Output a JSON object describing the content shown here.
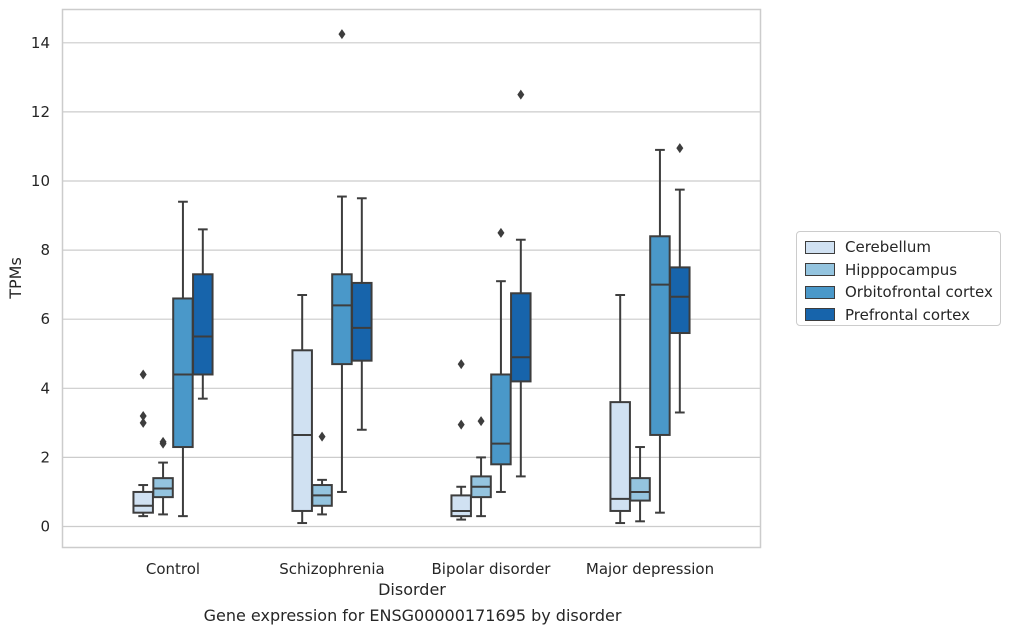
{
  "caption": "Gene expression for ENSG00000171695 by disorder",
  "chart_data": {
    "type": "box",
    "xlabel": "Disorder",
    "ylabel": "TPMs",
    "ylim": [
      -0.6,
      15.0
    ],
    "yticks": [
      0,
      2,
      4,
      6,
      8,
      10,
      12,
      14
    ],
    "grid": "horizontal",
    "legend_position": "right",
    "categories": [
      "Control",
      "Schizophrenia",
      "Bipolar disorder",
      "Major depression"
    ],
    "series": [
      {
        "name": "Cerebellum",
        "color": "#d0e1f2",
        "boxes": [
          {
            "whisker_low": 0.3,
            "q1": 0.4,
            "median": 0.6,
            "q3": 1.0,
            "whisker_high": 1.2,
            "outliers": [
              4.4,
              3.2,
              3.0
            ]
          },
          {
            "whisker_low": 0.1,
            "q1": 0.45,
            "median": 2.65,
            "q3": 5.1,
            "whisker_high": 6.7,
            "outliers": []
          },
          {
            "whisker_low": 0.2,
            "q1": 0.3,
            "median": 0.45,
            "q3": 0.9,
            "whisker_high": 1.15,
            "outliers": [
              4.7,
              2.95
            ]
          },
          {
            "whisker_low": 0.1,
            "q1": 0.45,
            "median": 0.8,
            "q3": 3.6,
            "whisker_high": 6.7,
            "outliers": []
          }
        ]
      },
      {
        "name": "Hipppocampus",
        "color": "#94c4df",
        "boxes": [
          {
            "whisker_low": 0.35,
            "q1": 0.85,
            "median": 1.1,
            "q3": 1.4,
            "whisker_high": 1.85,
            "outliers": [
              2.45,
              2.4
            ]
          },
          {
            "whisker_low": 0.35,
            "q1": 0.6,
            "median": 0.9,
            "q3": 1.2,
            "whisker_high": 1.35,
            "outliers": [
              2.6
            ]
          },
          {
            "whisker_low": 0.3,
            "q1": 0.85,
            "median": 1.15,
            "q3": 1.45,
            "whisker_high": 2.0,
            "outliers": [
              3.05
            ]
          },
          {
            "whisker_low": 0.15,
            "q1": 0.75,
            "median": 1.0,
            "q3": 1.4,
            "whisker_high": 2.3,
            "outliers": []
          }
        ]
      },
      {
        "name": "Orbitofrontal cortex",
        "color": "#4a98c9",
        "boxes": [
          {
            "whisker_low": 0.3,
            "q1": 2.3,
            "median": 4.4,
            "q3": 6.6,
            "whisker_high": 9.4,
            "outliers": []
          },
          {
            "whisker_low": 1.0,
            "q1": 4.7,
            "median": 6.4,
            "q3": 7.3,
            "whisker_high": 9.55,
            "outliers": [
              14.25
            ]
          },
          {
            "whisker_low": 1.0,
            "q1": 1.8,
            "median": 2.4,
            "q3": 4.4,
            "whisker_high": 7.1,
            "outliers": [
              8.5
            ]
          },
          {
            "whisker_low": 0.4,
            "q1": 2.65,
            "median": 7.0,
            "q3": 8.4,
            "whisker_high": 10.9,
            "outliers": []
          }
        ]
      },
      {
        "name": "Prefrontal cortex",
        "color": "#1764ab",
        "boxes": [
          {
            "whisker_low": 3.7,
            "q1": 4.4,
            "median": 5.5,
            "q3": 7.3,
            "whisker_high": 8.6,
            "outliers": []
          },
          {
            "whisker_low": 2.8,
            "q1": 4.8,
            "median": 5.75,
            "q3": 7.05,
            "whisker_high": 9.5,
            "outliers": []
          },
          {
            "whisker_low": 1.45,
            "q1": 4.2,
            "median": 4.9,
            "q3": 6.75,
            "whisker_high": 8.3,
            "outliers": [
              12.5
            ]
          },
          {
            "whisker_low": 3.3,
            "q1": 5.6,
            "median": 6.65,
            "q3": 7.5,
            "whisker_high": 9.75,
            "outliers": [
              10.95
            ]
          }
        ]
      }
    ]
  }
}
